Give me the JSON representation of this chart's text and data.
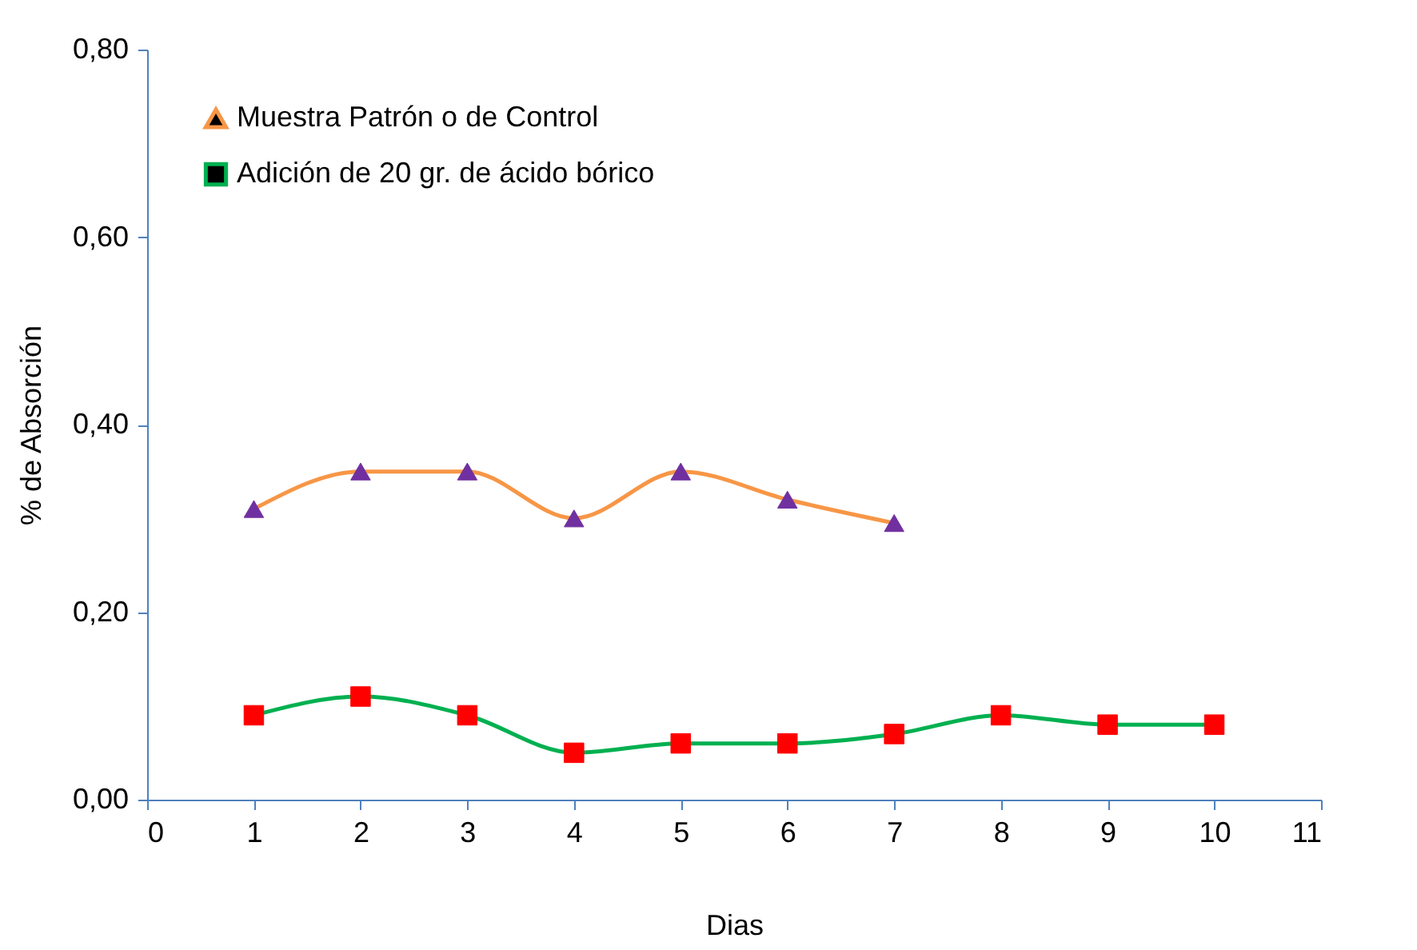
{
  "chart_data": {
    "type": "line",
    "xlabel": "Dias",
    "ylabel": "% de Absorción",
    "xlim": [
      0,
      11
    ],
    "xticks": [
      0,
      1,
      2,
      3,
      4,
      5,
      6,
      7,
      8,
      9,
      10,
      11
    ],
    "ylim": [
      0,
      0.8
    ],
    "yticks": [
      {
        "value": 0,
        "label": "0,00"
      },
      {
        "value": 0.2,
        "label": "0,20"
      },
      {
        "value": 0.4,
        "label": "0,40"
      },
      {
        "value": 0.6,
        "label": "0,60"
      },
      {
        "value": 0.8,
        "label": "0,80"
      }
    ],
    "legend": "top left",
    "grid": false,
    "series": [
      {
        "name": "Muestra Patrón o de Control",
        "color": "#f79646",
        "marker": "triangle",
        "x": [
          1,
          2,
          3,
          4,
          5,
          6,
          7
        ],
        "values": [
          0.31,
          0.35,
          0.35,
          0.3,
          0.35,
          0.32,
          0.295
        ],
        "colors": [
          "#7030a0",
          "#7030a0",
          "#7030a0",
          "#7030a0",
          "#7030a0",
          "#7030a0",
          "#7030a0"
        ]
      },
      {
        "name": "Adición de 20 gr. de ácido bórico",
        "color": "#00b050",
        "marker": "square",
        "x": [
          1,
          2,
          3,
          4,
          5,
          6,
          7,
          8,
          9,
          10
        ],
        "values": [
          0.09,
          0.11,
          0.09,
          0.05,
          0.06,
          0.06,
          0.07,
          0.09,
          0.08,
          0.08
        ],
        "colors": [
          "#ff0000",
          "#ff0000",
          "#ff0000",
          "#ff0000",
          "#ff0000",
          "#ff0000",
          "#ff0000",
          "#ff0000",
          "#ff0000",
          "#ff0000"
        ]
      }
    ]
  }
}
